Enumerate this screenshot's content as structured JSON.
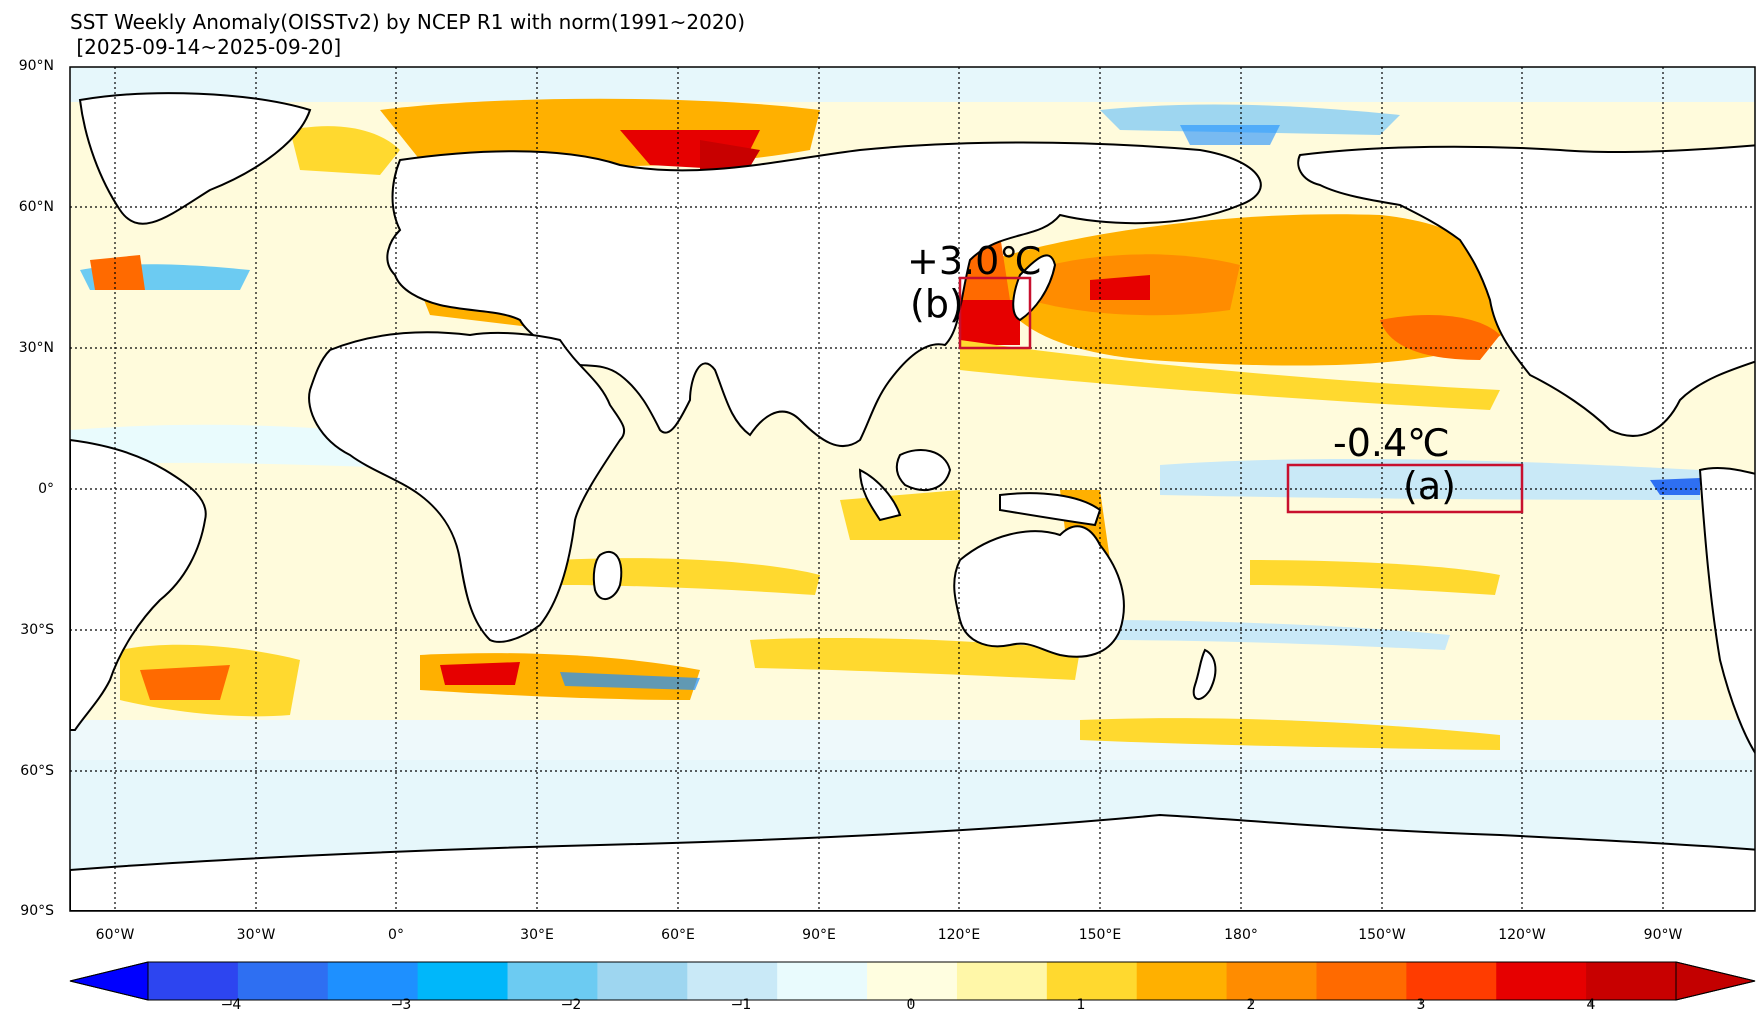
{
  "title": {
    "line1": "SST Weekly Anomaly(OISSTv2) by NCEP R1 with norm(1991~2020)",
    "line2": "[2025-09-14~2025-09-20]"
  },
  "latitude_labels": [
    "90°N",
    "60°N",
    "30°N",
    "0°",
    "30°S",
    "60°S",
    "90°S"
  ],
  "longitude_labels": [
    "60°W",
    "30°W",
    "0°",
    "30°E",
    "60°E",
    "90°E",
    "120°E",
    "150°E",
    "180°",
    "150°W",
    "120°W",
    "90°W"
  ],
  "colorbar": {
    "ticks": [
      "−4",
      "−3",
      "−2",
      "−1",
      "0",
      "1",
      "2",
      "3",
      "4"
    ],
    "colors": [
      "#2d45f0",
      "#2e6ff2",
      "#1e90ff",
      "#00b7fa",
      "#6ccbf2",
      "#9ed6f0",
      "#c9e9f7",
      "#e9fbfd",
      "#fffee0",
      "#fff7a8",
      "#ffd92f",
      "#ffb000",
      "#ff8c00",
      "#ff6a00",
      "#ff3c00",
      "#e60000",
      "#c80000"
    ],
    "extend_low_color": "#0000ff",
    "extend_high_color": "#c30000"
  },
  "annotations": {
    "a": {
      "value": "-0.4℃",
      "tag": "(a)",
      "box_color": "#c8102e"
    },
    "b": {
      "value": "+3.0℃",
      "tag": "(b)",
      "box_color": "#c8102e"
    }
  }
}
